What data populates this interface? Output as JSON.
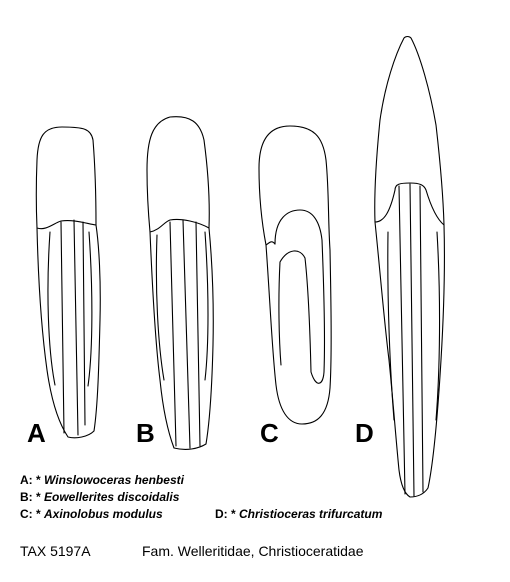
{
  "figure": {
    "specimens": [
      {
        "letter": "A",
        "code": "A: *",
        "taxon": "Winslowoceras henbesti"
      },
      {
        "letter": "B",
        "code": "B: *",
        "taxon": "Eowellerites discoidalis"
      },
      {
        "letter": "C",
        "code": "C: *",
        "taxon": "Axinolobus modulus"
      },
      {
        "letter": "D",
        "code": "D: *",
        "taxon": "Christioceras trifurcatum"
      }
    ]
  },
  "footer": {
    "tax_code": "TAX 5197A",
    "family": "Fam. Welleritidae, Christioceratidae"
  }
}
